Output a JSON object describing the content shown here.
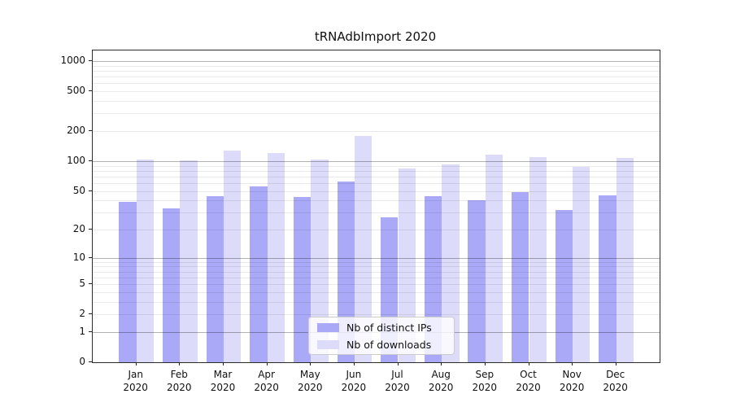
{
  "title": "tRNAdbImport 2020",
  "chart_data": {
    "type": "bar",
    "title": "tRNAdbImport 2020",
    "xlabel": "",
    "ylabel": "",
    "x_tick_year": "2020",
    "categories": [
      "Jan 2020",
      "Feb 2020",
      "Mar 2020",
      "Apr 2020",
      "May 2020",
      "Jun 2020",
      "Jul 2020",
      "Aug 2020",
      "Sep 2020",
      "Oct 2020",
      "Nov 2020",
      "Dec 2020"
    ],
    "months": [
      "Jan",
      "Feb",
      "Mar",
      "Apr",
      "May",
      "Jun",
      "Jul",
      "Aug",
      "Sep",
      "Oct",
      "Nov",
      "Dec"
    ],
    "series": [
      {
        "name": "Nb of distinct IPs",
        "color": "#a9a9f8",
        "values": [
          39,
          33,
          44,
          56,
          43,
          62,
          27,
          44,
          40,
          49,
          32,
          45
        ]
      },
      {
        "name": "Nb of downloads",
        "color": "#dcdcfa",
        "values": [
          103,
          101,
          128,
          120,
          103,
          180,
          84,
          93,
          116,
          110,
          87,
          108
        ]
      }
    ],
    "y_scale": "symlog (log10 of value+1), 0 at baseline",
    "y_ticks": [
      1000,
      500,
      200,
      100,
      50,
      20,
      10,
      5,
      2,
      1,
      0
    ],
    "y_major_gridlines": [
      1,
      10,
      100,
      1000
    ],
    "ylim": [
      0,
      1270
    ],
    "grid": "on",
    "legend_position": "lower center",
    "colors": {
      "bar_dark": "#a9a9f8",
      "bar_light": "#dcdcfa",
      "major_grid": "#b3b3b3",
      "minor_grid": "#e9e9e9",
      "spine": "#2b2b2b",
      "background": "#ffffff"
    }
  },
  "legend": {
    "items": [
      {
        "label": "Nb of distinct IPs"
      },
      {
        "label": "Nb of downloads"
      }
    ]
  }
}
